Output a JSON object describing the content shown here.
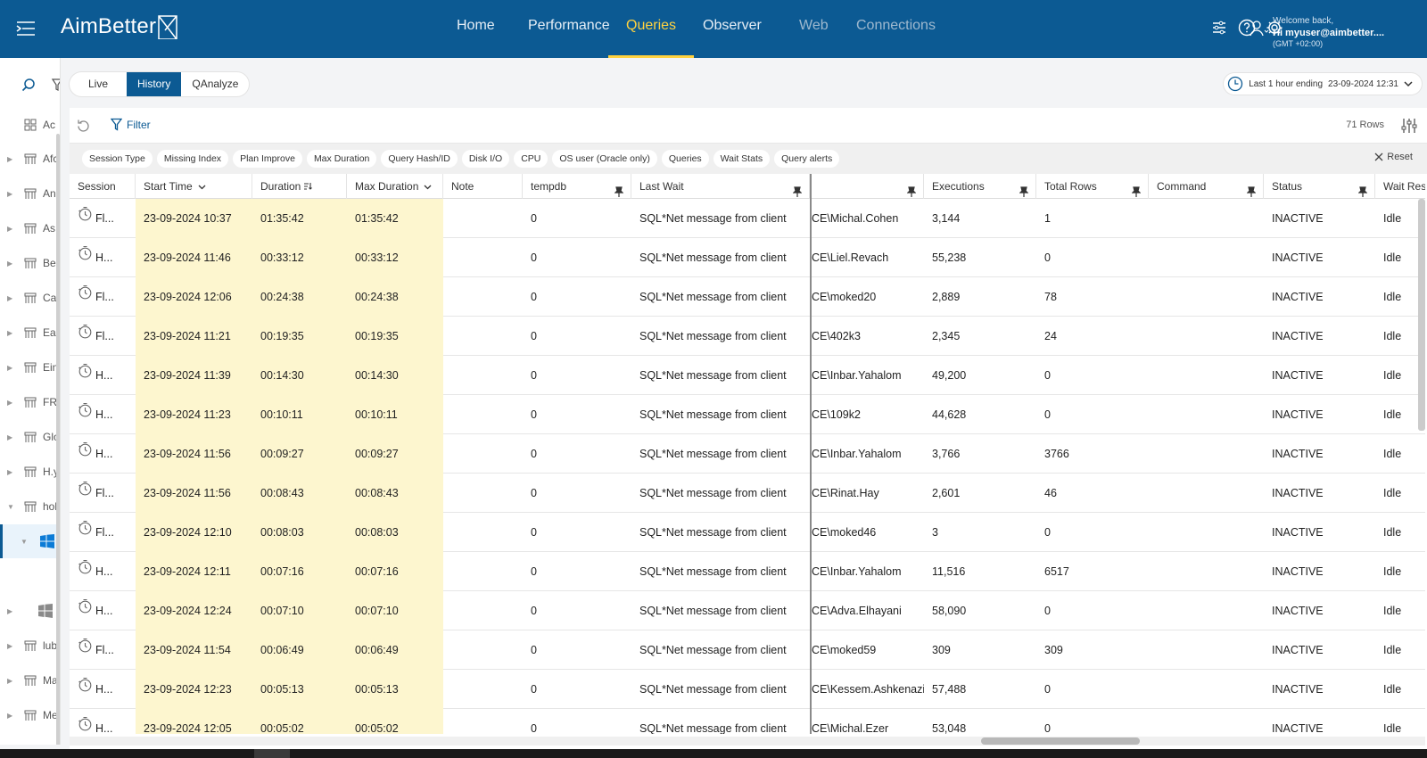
{
  "app": {
    "logo": "AimBetter"
  },
  "nav": [
    {
      "label": "Home",
      "state": "normal"
    },
    {
      "label": "Performance",
      "state": "normal"
    },
    {
      "label": "Queries",
      "state": "active"
    },
    {
      "label": "Observer",
      "state": "normal"
    },
    {
      "label": "Web",
      "state": "dim"
    },
    {
      "label": "Connections",
      "state": "dim"
    }
  ],
  "user": {
    "welcome": "Welcome back,",
    "name": "Hi myuser@aimbetter....",
    "timezone": "(GMT +02:00)"
  },
  "sidebar": {
    "items": [
      {
        "label": "Ac",
        "caret": ""
      },
      {
        "label": "Afc",
        "caret": "▶"
      },
      {
        "label": "An",
        "caret": "▶"
      },
      {
        "label": "As",
        "caret": "▶"
      },
      {
        "label": "Be",
        "caret": "▶"
      },
      {
        "label": "Ca",
        "caret": "▶"
      },
      {
        "label": "Ea",
        "caret": "▶"
      },
      {
        "label": "Ein",
        "caret": "▶"
      },
      {
        "label": "FR",
        "caret": "▶"
      },
      {
        "label": "Glo",
        "caret": "▶"
      },
      {
        "label": "H.y",
        "caret": "▶"
      },
      {
        "label": "hol",
        "caret": "▼"
      },
      {
        "label": "",
        "caret": "▼",
        "selected": true,
        "icon": "windows"
      },
      {
        "label": "",
        "caret": "",
        "icon": "none"
      },
      {
        "label": "",
        "caret": "▶",
        "icon": "windows-grey"
      },
      {
        "label": "lub",
        "caret": "▶"
      },
      {
        "label": "Ma",
        "caret": "▶"
      },
      {
        "label": "Me",
        "caret": "▶"
      }
    ]
  },
  "tabs": [
    {
      "label": "Live",
      "active": false
    },
    {
      "label": "History",
      "active": true
    },
    {
      "label": "QAnalyze",
      "active": false
    }
  ],
  "timerange": {
    "label": "Last 1 hour ending",
    "value": "23-09-2024 12:31"
  },
  "toolbar": {
    "filter_label": "Filter",
    "rows_count": "71 Rows",
    "reset_label": "Reset"
  },
  "chips": [
    "Session Type",
    "Missing Index",
    "Plan Improve",
    "Max Duration",
    "Query Hash/ID",
    "Disk I/O",
    "CPU",
    "OS user (Oracle only)",
    "Queries",
    "Wait Stats",
    "Query alerts"
  ],
  "columns": [
    {
      "key": "session",
      "label": "Session",
      "pin": false
    },
    {
      "key": "start",
      "label": "Start Time",
      "pin": false,
      "sort": "down"
    },
    {
      "key": "duration",
      "label": "Duration",
      "pin": false,
      "sort": "active"
    },
    {
      "key": "max",
      "label": "Max Duration",
      "pin": false,
      "sort": "down"
    },
    {
      "key": "note",
      "label": "Note",
      "pin": false
    },
    {
      "key": "tempdb",
      "label": "tempdb",
      "pin": true
    },
    {
      "key": "wait",
      "label": "Last Wait",
      "pin": true
    },
    {
      "key": "user",
      "label": "",
      "pin": true
    },
    {
      "key": "exec",
      "label": "Executions",
      "pin": true
    },
    {
      "key": "rows",
      "label": "Total Rows",
      "pin": true
    },
    {
      "key": "cmd",
      "label": "Command",
      "pin": true
    },
    {
      "key": "status",
      "label": "Status",
      "pin": true
    },
    {
      "key": "waitres",
      "label": "Wait Res",
      "pin": false
    }
  ],
  "rows": [
    {
      "session": "Fl...",
      "start": "23-09-2024 10:37",
      "duration": "01:35:42",
      "max": "01:35:42",
      "note": "",
      "tempdb": "0",
      "wait": "SQL*Net message from client",
      "user": "CE\\Michal.Cohen",
      "exec": "3,144",
      "rows": "1",
      "cmd": "",
      "status": "INACTIVE",
      "waitres": "Idle"
    },
    {
      "session": "H...",
      "start": "23-09-2024 11:46",
      "duration": "00:33:12",
      "max": "00:33:12",
      "note": "",
      "tempdb": "0",
      "wait": "SQL*Net message from client",
      "user": "CE\\Liel.Revach",
      "exec": "55,238",
      "rows": "0",
      "cmd": "",
      "status": "INACTIVE",
      "waitres": "Idle"
    },
    {
      "session": "Fl...",
      "start": "23-09-2024 12:06",
      "duration": "00:24:38",
      "max": "00:24:38",
      "note": "",
      "tempdb": "0",
      "wait": "SQL*Net message from client",
      "user": "CE\\moked20",
      "exec": "2,889",
      "rows": "78",
      "cmd": "",
      "status": "INACTIVE",
      "waitres": "Idle"
    },
    {
      "session": "Fl...",
      "start": "23-09-2024 11:21",
      "duration": "00:19:35",
      "max": "00:19:35",
      "note": "",
      "tempdb": "0",
      "wait": "SQL*Net message from client",
      "user": "CE\\402k3",
      "exec": "2,345",
      "rows": "24",
      "cmd": "",
      "status": "INACTIVE",
      "waitres": "Idle"
    },
    {
      "session": "H...",
      "start": "23-09-2024 11:39",
      "duration": "00:14:30",
      "max": "00:14:30",
      "note": "",
      "tempdb": "0",
      "wait": "SQL*Net message from client",
      "user": "CE\\Inbar.Yahalom",
      "exec": "49,200",
      "rows": "0",
      "cmd": "",
      "status": "INACTIVE",
      "waitres": "Idle"
    },
    {
      "session": "H...",
      "start": "23-09-2024 11:23",
      "duration": "00:10:11",
      "max": "00:10:11",
      "note": "",
      "tempdb": "0",
      "wait": "SQL*Net message from client",
      "user": "CE\\109k2",
      "exec": "44,628",
      "rows": "0",
      "cmd": "",
      "status": "INACTIVE",
      "waitres": "Idle"
    },
    {
      "session": "H...",
      "start": "23-09-2024 11:56",
      "duration": "00:09:27",
      "max": "00:09:27",
      "note": "",
      "tempdb": "0",
      "wait": "SQL*Net message from client",
      "user": "CE\\Inbar.Yahalom",
      "exec": "3,766",
      "rows": "3766",
      "cmd": "",
      "status": "INACTIVE",
      "waitres": "Idle"
    },
    {
      "session": "Fl...",
      "start": "23-09-2024 11:56",
      "duration": "00:08:43",
      "max": "00:08:43",
      "note": "",
      "tempdb": "0",
      "wait": "SQL*Net message from client",
      "user": "CE\\Rinat.Hay",
      "exec": "2,601",
      "rows": "46",
      "cmd": "",
      "status": "INACTIVE",
      "waitres": "Idle"
    },
    {
      "session": "Fl...",
      "start": "23-09-2024 12:10",
      "duration": "00:08:03",
      "max": "00:08:03",
      "note": "",
      "tempdb": "0",
      "wait": "SQL*Net message from client",
      "user": "CE\\moked46",
      "exec": "3",
      "rows": "0",
      "cmd": "",
      "status": "INACTIVE",
      "waitres": "Idle"
    },
    {
      "session": "H...",
      "start": "23-09-2024 12:11",
      "duration": "00:07:16",
      "max": "00:07:16",
      "note": "",
      "tempdb": "0",
      "wait": "SQL*Net message from client",
      "user": "CE\\Inbar.Yahalom",
      "exec": "11,516",
      "rows": "6517",
      "cmd": "",
      "status": "INACTIVE",
      "waitres": "Idle"
    },
    {
      "session": "H...",
      "start": "23-09-2024 12:24",
      "duration": "00:07:10",
      "max": "00:07:10",
      "note": "",
      "tempdb": "0",
      "wait": "SQL*Net message from client",
      "user": "CE\\Adva.Elhayani",
      "exec": "58,090",
      "rows": "0",
      "cmd": "",
      "status": "INACTIVE",
      "waitres": "Idle"
    },
    {
      "session": "Fl...",
      "start": "23-09-2024 11:54",
      "duration": "00:06:49",
      "max": "00:06:49",
      "note": "",
      "tempdb": "0",
      "wait": "SQL*Net message from client",
      "user": "CE\\moked59",
      "exec": "309",
      "rows": "309",
      "cmd": "",
      "status": "INACTIVE",
      "waitres": "Idle"
    },
    {
      "session": "H...",
      "start": "23-09-2024 12:23",
      "duration": "00:05:13",
      "max": "00:05:13",
      "note": "",
      "tempdb": "0",
      "wait": "SQL*Net message from client",
      "user": "CE\\Kessem.Ashkenazi",
      "exec": "57,488",
      "rows": "0",
      "cmd": "",
      "status": "INACTIVE",
      "waitres": "Idle"
    },
    {
      "session": "H...",
      "start": "23-09-2024 12:05",
      "duration": "00:05:02",
      "max": "00:05:02",
      "note": "",
      "tempdb": "0",
      "wait": "SQL*Net message from client",
      "user": "CE\\Michal.Ezer",
      "exec": "53,048",
      "rows": "0",
      "cmd": "",
      "status": "INACTIVE",
      "waitres": "Idle"
    }
  ],
  "colors": {
    "brand": "#0c5a93",
    "accent": "#ffd23f",
    "highlight": "#fdf6cf"
  }
}
